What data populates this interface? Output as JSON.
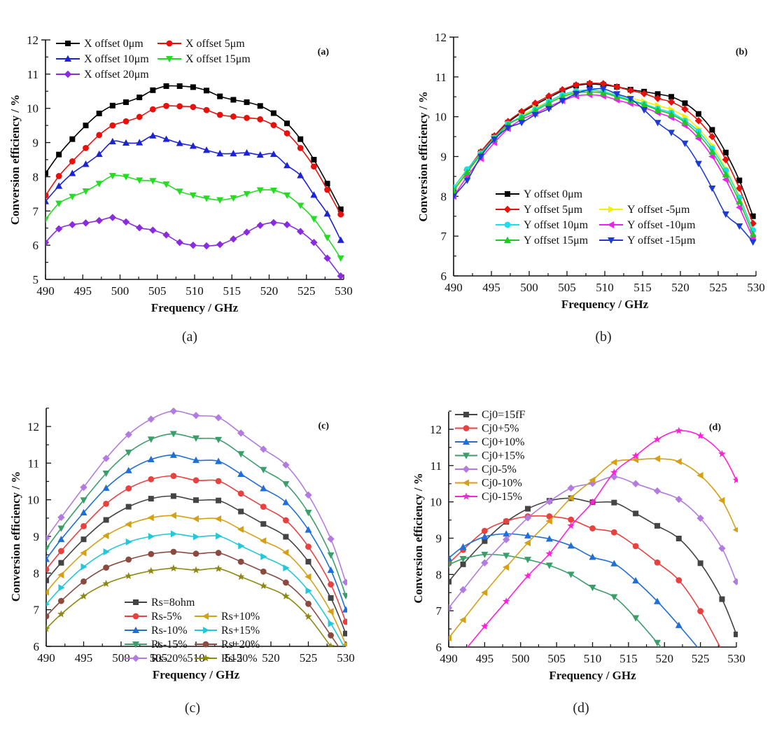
{
  "captions": [
    "(a)",
    "(b)",
    "(c)",
    "(d)"
  ],
  "chart_data": [
    {
      "id": "a",
      "type": "line",
      "panel_label": "(a)",
      "xlabel": "Frequency / GHz",
      "ylabel": "Conversion efficiency / %",
      "xlim": [
        490,
        530
      ],
      "ylim": [
        5,
        12
      ],
      "xticks": [
        490,
        495,
        500,
        505,
        510,
        515,
        520,
        525,
        530
      ],
      "yticks": [
        5,
        6,
        7,
        8,
        9,
        10,
        11,
        12
      ],
      "grid": false,
      "legend_position": "top-left",
      "legend_columns": 2,
      "x": [
        490,
        491.8,
        493.6,
        495.4,
        497.2,
        499.0,
        500.8,
        502.6,
        504.4,
        506.2,
        508.0,
        509.8,
        511.6,
        513.4,
        515.2,
        517.0,
        518.8,
        520.6,
        522.4,
        524.2,
        526.0,
        527.8,
        529.6
      ],
      "series": [
        {
          "name": "X offset 0μm",
          "color": "#000000",
          "marker": "square",
          "values": [
            8.1,
            8.65,
            9.1,
            9.5,
            9.85,
            10.08,
            10.18,
            10.32,
            10.53,
            10.65,
            10.65,
            10.62,
            10.52,
            10.35,
            10.25,
            10.18,
            10.07,
            9.86,
            9.56,
            9.1,
            8.5,
            7.8,
            7.05
          ]
        },
        {
          "name": "X offset 5μm",
          "color": "#e8100d",
          "marker": "circle",
          "values": [
            7.45,
            8.02,
            8.45,
            8.84,
            9.22,
            9.5,
            9.62,
            9.75,
            9.97,
            10.07,
            10.06,
            10.04,
            9.95,
            9.81,
            9.76,
            9.72,
            9.68,
            9.51,
            9.27,
            8.84,
            8.3,
            7.62,
            6.9
          ]
        },
        {
          "name": "X offset 10μm",
          "color": "#1c22d6",
          "marker": "triangle-up",
          "values": [
            7.28,
            7.73,
            8.1,
            8.37,
            8.66,
            9.03,
            8.99,
            9.0,
            9.2,
            9.1,
            8.98,
            8.9,
            8.78,
            8.68,
            8.68,
            8.7,
            8.64,
            8.66,
            8.33,
            8.04,
            7.47,
            6.92,
            6.15
          ]
        },
        {
          "name": "X offset 15μm",
          "color": "#22dd22",
          "marker": "triangle-down",
          "values": [
            6.75,
            7.22,
            7.42,
            7.58,
            7.8,
            8.03,
            8.0,
            7.9,
            7.88,
            7.78,
            7.57,
            7.46,
            7.37,
            7.32,
            7.38,
            7.5,
            7.61,
            7.6,
            7.46,
            7.16,
            6.77,
            6.22,
            5.62
          ]
        },
        {
          "name": "X offset 20μm",
          "color": "#8a2be2",
          "marker": "diamond",
          "values": [
            6.08,
            6.48,
            6.6,
            6.65,
            6.72,
            6.81,
            6.68,
            6.51,
            6.44,
            6.3,
            6.08,
            6.0,
            5.98,
            6.02,
            6.18,
            6.38,
            6.58,
            6.66,
            6.6,
            6.4,
            6.08,
            5.62,
            5.1
          ]
        }
      ]
    },
    {
      "id": "b",
      "type": "line",
      "panel_label": "(b)",
      "xlabel": "Frequency / GHz",
      "ylabel": "Conversion efficiency / %",
      "xlim": [
        490,
        530
      ],
      "ylim": [
        6,
        12
      ],
      "xticks": [
        490,
        495,
        500,
        505,
        510,
        515,
        520,
        525,
        530
      ],
      "yticks": [
        6,
        7,
        8,
        9,
        10,
        11,
        12
      ],
      "grid": false,
      "legend_position": "bottom-center",
      "legend_columns": 2,
      "x": [
        490,
        491.8,
        493.6,
        495.4,
        497.2,
        499.0,
        500.8,
        502.6,
        504.4,
        506.2,
        508.0,
        509.8,
        511.6,
        513.4,
        515.2,
        517.0,
        518.8,
        520.6,
        522.4,
        524.2,
        526.0,
        527.8,
        529.6
      ],
      "series": [
        {
          "name": "Y offset  0μm",
          "color": "#000000",
          "marker": "square",
          "values": [
            8.15,
            8.65,
            9.1,
            9.5,
            9.85,
            10.1,
            10.3,
            10.48,
            10.65,
            10.78,
            10.82,
            10.8,
            10.75,
            10.68,
            10.63,
            10.57,
            10.5,
            10.34,
            10.07,
            9.67,
            9.1,
            8.4,
            7.5
          ]
        },
        {
          "name": "Y offset  5μm",
          "color": "#e8100d",
          "marker": "diamond",
          "values": [
            8.2,
            8.66,
            9.12,
            9.52,
            9.88,
            10.13,
            10.34,
            10.52,
            10.68,
            10.8,
            10.84,
            10.83,
            10.75,
            10.66,
            10.58,
            10.46,
            10.37,
            10.19,
            9.9,
            9.5,
            8.92,
            8.2,
            7.32
          ]
        },
        {
          "name": "Y offset -5μm",
          "color": "#f5f000",
          "marker": "triangle-right",
          "values": [
            8.2,
            8.62,
            9.05,
            9.45,
            9.8,
            10.02,
            10.22,
            10.38,
            10.53,
            10.63,
            10.66,
            10.63,
            10.55,
            10.47,
            10.38,
            10.28,
            10.18,
            10.0,
            9.7,
            9.28,
            8.7,
            8.0,
            7.15
          ]
        },
        {
          "name": "Y offset  10μm",
          "color": "#19e0f0",
          "marker": "circle",
          "values": [
            8.22,
            8.68,
            9.08,
            9.47,
            9.82,
            10.0,
            10.18,
            10.38,
            10.55,
            10.64,
            10.67,
            10.63,
            10.53,
            10.42,
            10.32,
            10.2,
            10.1,
            9.9,
            9.63,
            9.2,
            8.65,
            7.97,
            7.15
          ]
        },
        {
          "name": "Y offset -10μm",
          "color": "#ee22ee",
          "marker": "triangle-left",
          "values": [
            8.0,
            8.5,
            8.95,
            9.35,
            9.7,
            9.93,
            10.08,
            10.25,
            10.4,
            10.52,
            10.55,
            10.52,
            10.42,
            10.33,
            10.23,
            10.1,
            9.98,
            9.78,
            9.45,
            9.0,
            8.42,
            7.72,
            6.95
          ]
        },
        {
          "name": "Y offset  15μm",
          "color": "#22c722",
          "marker": "triangle-up",
          "values": [
            8.15,
            8.6,
            9.05,
            9.44,
            9.8,
            9.98,
            10.15,
            10.34,
            10.5,
            10.6,
            10.62,
            10.6,
            10.5,
            10.4,
            10.3,
            10.17,
            10.06,
            9.86,
            9.55,
            9.12,
            8.55,
            7.87,
            7.05
          ]
        },
        {
          "name": "Y offset -15μm",
          "color": "#1c3ad6",
          "marker": "triangle-down",
          "values": [
            8.0,
            8.4,
            9.0,
            9.43,
            9.72,
            9.85,
            10.05,
            10.2,
            10.4,
            10.58,
            10.68,
            10.7,
            10.57,
            10.45,
            10.17,
            9.85,
            9.6,
            9.33,
            8.82,
            8.2,
            7.55,
            7.25,
            6.85
          ]
        }
      ]
    },
    {
      "id": "c",
      "type": "line",
      "panel_label": "(c)",
      "xlabel": "Frequency / GHz",
      "ylabel": "Conversion efficiency / %",
      "xlim": [
        490,
        530
      ],
      "ylim": [
        6,
        12.5
      ],
      "xticks": [
        490,
        495,
        500,
        505,
        510,
        515,
        520,
        525,
        530
      ],
      "yticks": [
        6,
        7,
        8,
        9,
        10,
        11,
        12
      ],
      "grid": false,
      "legend_position": "bottom-center",
      "legend_columns": 2,
      "x": [
        490,
        492,
        495,
        498,
        501,
        504,
        507,
        510,
        513,
        516,
        519,
        522,
        525,
        528,
        530
      ],
      "series": [
        {
          "name": "Rs=8ohm",
          "color": "#444444",
          "marker": "square",
          "values": [
            7.8,
            8.28,
            8.92,
            9.45,
            9.81,
            10.03,
            10.1,
            9.99,
            9.98,
            9.68,
            9.34,
            8.99,
            8.31,
            7.32,
            6.35
          ]
        },
        {
          "name": "Rs-5%",
          "color": "#e8413f",
          "marker": "circle",
          "values": [
            8.1,
            8.6,
            9.28,
            9.89,
            10.31,
            10.56,
            10.65,
            10.53,
            10.51,
            10.17,
            9.81,
            9.44,
            8.72,
            7.69,
            6.67
          ]
        },
        {
          "name": "Rs+10%",
          "color": "#d4a014",
          "marker": "triangle-left",
          "values": [
            7.48,
            7.95,
            8.55,
            9.02,
            9.33,
            9.51,
            9.57,
            9.48,
            9.48,
            9.19,
            8.88,
            8.56,
            7.9,
            6.95,
            6.05
          ]
        },
        {
          "name": "Rs-10%",
          "color": "#1f6fd4",
          "marker": "triangle-up",
          "values": [
            8.38,
            8.92,
            9.65,
            10.32,
            10.8,
            11.1,
            11.22,
            11.08,
            11.05,
            10.7,
            10.31,
            9.93,
            9.18,
            8.08,
            7.0
          ]
        },
        {
          "name": "Rs+15%",
          "color": "#22c8d8",
          "marker": "triangle-right",
          "values": [
            7.15,
            7.6,
            8.17,
            8.58,
            8.85,
            9.0,
            9.07,
            8.99,
            9.01,
            8.74,
            8.45,
            8.14,
            7.52,
            6.62,
            5.9
          ]
        },
        {
          "name": "Rs-15%",
          "color": "#3a9e6a",
          "marker": "triangle-down",
          "values": [
            8.67,
            9.22,
            9.99,
            10.72,
            11.29,
            11.65,
            11.8,
            11.68,
            11.64,
            11.25,
            10.82,
            10.43,
            9.65,
            8.49,
            7.38
          ]
        },
        {
          "name": "Rs+20%",
          "color": "#8a4a40",
          "marker": "circle",
          "values": [
            6.82,
            7.24,
            7.77,
            8.15,
            8.37,
            8.52,
            8.58,
            8.53,
            8.55,
            8.31,
            8.04,
            7.74,
            7.16,
            6.3,
            5.7
          ]
        },
        {
          "name": "Rs-20%",
          "color": "#b27be0",
          "marker": "diamond",
          "values": [
            8.95,
            9.52,
            10.34,
            11.13,
            11.78,
            12.2,
            12.42,
            12.3,
            12.24,
            11.82,
            11.38,
            10.95,
            10.13,
            8.93,
            7.75
          ]
        },
        {
          "name": "Rs-20%",
          "color": "#8c8a14",
          "marker": "star",
          "values": [
            6.48,
            6.88,
            7.37,
            7.71,
            7.92,
            8.06,
            8.13,
            8.08,
            8.12,
            7.9,
            7.65,
            7.37,
            6.81,
            6.0,
            5.5
          ]
        }
      ]
    },
    {
      "id": "d",
      "type": "line",
      "panel_label": "(d)",
      "xlabel": "Frequency / GHz",
      "ylabel": "Conversion efficiency / %",
      "xlim": [
        490,
        530
      ],
      "ylim": [
        6,
        12.5
      ],
      "xticks": [
        490,
        495,
        500,
        505,
        510,
        515,
        520,
        525,
        530
      ],
      "yticks": [
        6,
        7,
        8,
        9,
        10,
        11,
        12
      ],
      "grid": false,
      "legend_position": "top-left",
      "legend_columns": 1,
      "x": [
        490,
        492,
        495,
        498,
        501,
        504,
        507,
        510,
        513,
        516,
        519,
        522,
        525,
        528,
        530
      ],
      "series": [
        {
          "name": "Cj0=15fF",
          "color": "#444444",
          "marker": "square",
          "values": [
            7.8,
            8.28,
            8.92,
            9.45,
            9.81,
            10.03,
            10.1,
            9.99,
            9.98,
            9.68,
            9.34,
            8.99,
            8.31,
            7.32,
            6.35
          ]
        },
        {
          "name": "Cj0+5%",
          "color": "#e8413f",
          "marker": "circle",
          "values": [
            8.3,
            8.68,
            9.2,
            9.47,
            9.6,
            9.6,
            9.51,
            9.27,
            9.16,
            8.78,
            8.33,
            7.84,
            6.99,
            5.9,
            null
          ]
        },
        {
          "name": "Cj0+10%",
          "color": "#1f6fd4",
          "marker": "triangle-up",
          "values": [
            8.45,
            8.76,
            9.04,
            9.12,
            9.07,
            8.98,
            8.79,
            8.48,
            8.3,
            7.83,
            7.26,
            6.6,
            5.9,
            null,
            null
          ]
        },
        {
          "name": "Cj0+15%",
          "color": "#3a9e6a",
          "marker": "triangle-down",
          "values": [
            8.27,
            8.43,
            8.55,
            8.52,
            8.41,
            8.25,
            8.0,
            7.64,
            7.38,
            6.8,
            6.12,
            5.4,
            null,
            null,
            null
          ]
        },
        {
          "name": "Cj0-5%",
          "color": "#b27be0",
          "marker": "diamond",
          "values": [
            7.08,
            7.58,
            8.32,
            8.96,
            9.56,
            10.01,
            10.38,
            10.51,
            10.69,
            10.5,
            10.3,
            10.07,
            9.55,
            8.72,
            7.8
          ]
        },
        {
          "name": "Cj0-10%",
          "color": "#d4a014",
          "marker": "triangle-left",
          "values": [
            6.25,
            6.75,
            7.5,
            8.2,
            8.87,
            9.47,
            10.11,
            10.6,
            11.09,
            11.16,
            11.19,
            11.11,
            10.73,
            10.04,
            9.23
          ]
        },
        {
          "name": "Cj0-15%",
          "color": "#ff22d8",
          "marker": "star",
          "values": [
            null,
            5.85,
            6.57,
            7.26,
            7.96,
            8.57,
            9.34,
            9.99,
            10.81,
            11.27,
            11.72,
            11.96,
            11.82,
            11.32,
            10.6
          ]
        }
      ]
    }
  ]
}
